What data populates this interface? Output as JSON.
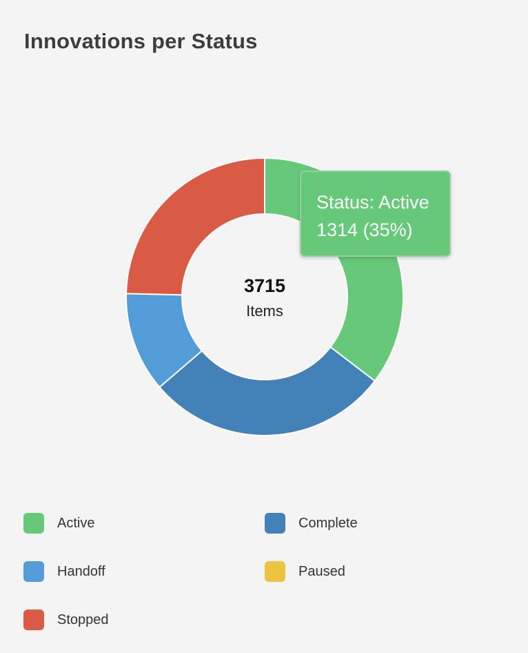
{
  "title": "Innovations per Status",
  "chart_data": {
    "type": "pie",
    "variant": "donut",
    "title": "Innovations per Status",
    "total": 3715,
    "total_label": "Items",
    "slices": [
      {
        "name": "Active",
        "value": 1314,
        "color": "#66c97a"
      },
      {
        "name": "Complete",
        "value": 1053,
        "color": "#4382b9"
      },
      {
        "name": "Handoff",
        "value": 433,
        "color": "#549cd8"
      },
      {
        "name": "Paused",
        "value": 0,
        "color": "#edc440"
      },
      {
        "name": "Stopped",
        "value": 915,
        "color": "#d95a45"
      }
    ],
    "legend_position": "bottom",
    "tooltip": {
      "line1": "Status: Active",
      "line2": "1314 (35%)",
      "color": "#66c97a"
    }
  },
  "legend": [
    {
      "label": "Active",
      "color": "#66c97a"
    },
    {
      "label": "Complete",
      "color": "#4382b9"
    },
    {
      "label": "Handoff",
      "color": "#549cd8"
    },
    {
      "label": "Paused",
      "color": "#edc440"
    },
    {
      "label": "Stopped",
      "color": "#d95a45"
    }
  ]
}
